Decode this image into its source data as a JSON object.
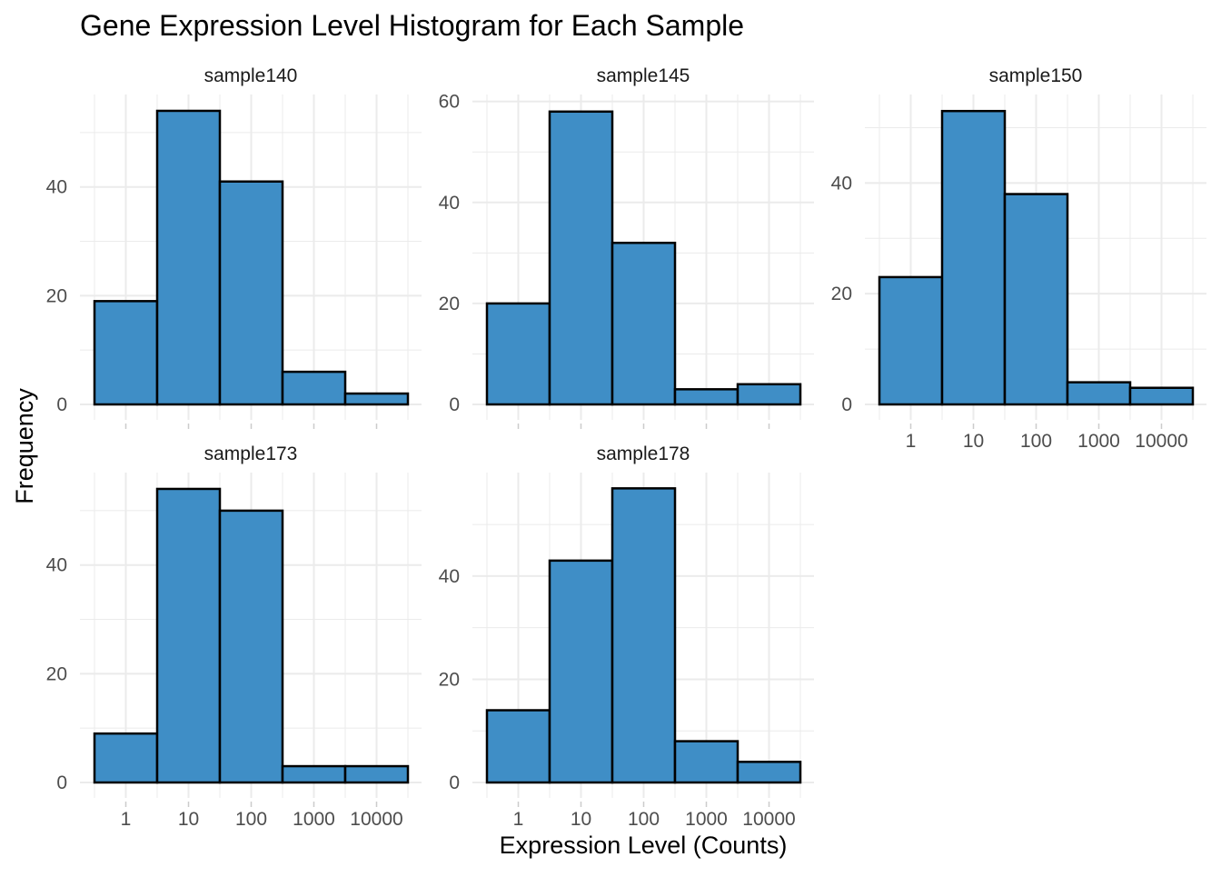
{
  "chart_data": {
    "type": "bar",
    "title": "Gene Expression Level Histogram for Each Sample",
    "xlabel": "Expression Level (Counts)",
    "ylabel": "Frequency",
    "x_scale": "log10",
    "bins": [
      "1",
      "10",
      "100",
      "1000",
      "10000"
    ],
    "x_tick_labels": [
      "1",
      "10",
      "100",
      "1000",
      "10000"
    ],
    "grid": true,
    "theme": "minimal",
    "colors": {
      "fill": "#3f8ec6",
      "outline": "#000000",
      "grid": "#ebebeb"
    },
    "panels": [
      {
        "name": "sample140",
        "values": [
          19,
          54,
          41,
          6,
          2
        ],
        "ylim": [
          0,
          56
        ],
        "y_ticks": [
          0,
          20,
          40
        ]
      },
      {
        "name": "sample145",
        "values": [
          20,
          58,
          32,
          3,
          4
        ],
        "ylim": [
          0,
          60.3
        ],
        "y_ticks": [
          0,
          20,
          40,
          60
        ]
      },
      {
        "name": "sample150",
        "values": [
          23,
          53,
          38,
          4,
          3
        ],
        "ylim": [
          0,
          55
        ],
        "y_ticks": [
          0,
          20,
          40
        ]
      },
      {
        "name": "sample173",
        "values": [
          9,
          54,
          50,
          3,
          3
        ],
        "ylim": [
          0,
          56
        ],
        "y_ticks": [
          0,
          20,
          40
        ]
      },
      {
        "name": "sample178",
        "values": [
          14,
          43,
          57,
          8,
          4
        ],
        "ylim": [
          0,
          59
        ],
        "y_ticks": [
          0,
          20,
          40
        ]
      }
    ]
  }
}
